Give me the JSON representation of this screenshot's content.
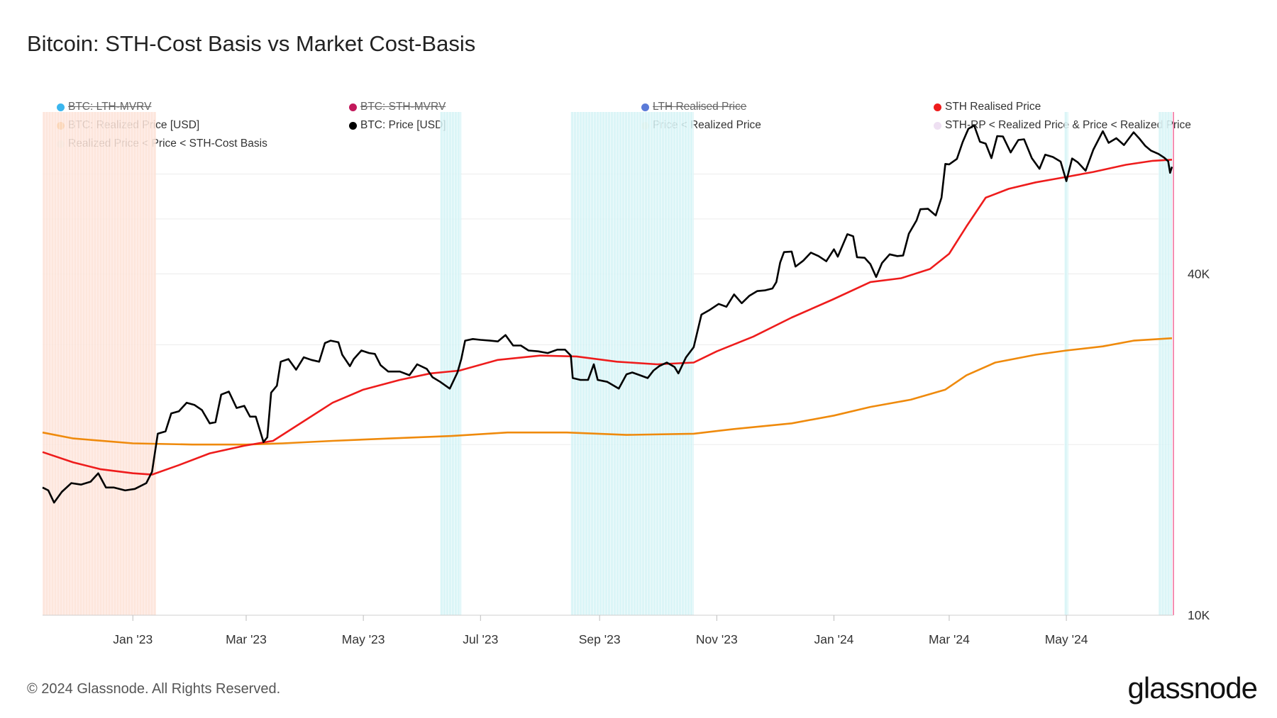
{
  "title": "Bitcoin: STH-Cost Basis vs Market Cost-Basis",
  "footer": "© 2024 Glassnode. All Rights Reserved.",
  "logo": "glassnode",
  "legend": [
    {
      "label": "BTC: LTH-MVRV",
      "color": "#3bb6ee",
      "hidden": true
    },
    {
      "label": "BTC: STH-MVRV",
      "color": "#c2185b",
      "hidden": true
    },
    {
      "label": "LTH Realised Price",
      "color": "#5b7bd8",
      "hidden": true
    },
    {
      "label": "STH Realised Price",
      "color": "#ee1c1c",
      "hidden": false
    },
    {
      "label": "BTC: Realized Price [USD]",
      "color": "#ef8a0c",
      "hidden": false
    },
    {
      "label": "BTC: Price [USD]",
      "color": "#000000",
      "hidden": false
    },
    {
      "label": "Price < Realized Price",
      "color": "#fde7c7",
      "hidden": false
    },
    {
      "label": "STH-RP < Realized Price & Price < Realized Price",
      "color": "#eee0f2",
      "hidden": false
    },
    {
      "label": "Realized Price < Price < STH-Cost Basis",
      "color": "#dff6f8",
      "hidden": false
    }
  ],
  "chart_data": {
    "type": "line",
    "yscale": "log",
    "ylim": [
      10000,
      75000
    ],
    "xlim": [
      "2022-11-15",
      "2024-06-25"
    ],
    "y_ticks": [
      {
        "value": 10000,
        "label": "10K"
      },
      {
        "value": 40000,
        "label": "40K"
      }
    ],
    "x_ticks": [
      {
        "date": "2023-01-01",
        "label": "Jan '23"
      },
      {
        "date": "2023-03-01",
        "label": "Mar '23"
      },
      {
        "date": "2023-05-01",
        "label": "May '23"
      },
      {
        "date": "2023-07-01",
        "label": "Jul '23"
      },
      {
        "date": "2023-09-01",
        "label": "Sep '23"
      },
      {
        "date": "2023-11-01",
        "label": "Nov '23"
      },
      {
        "date": "2024-01-01",
        "label": "Jan '24"
      },
      {
        "date": "2024-03-01",
        "label": "Mar '24"
      },
      {
        "date": "2024-05-01",
        "label": "May '24"
      }
    ],
    "grid": true,
    "legend_position": "top",
    "series": [
      {
        "name": "BTC: Price [USD]",
        "color": "#000000",
        "points": [
          [
            "2022-11-15",
            16800
          ],
          [
            "2022-11-18",
            16600
          ],
          [
            "2022-11-21",
            15800
          ],
          [
            "2022-11-25",
            16500
          ],
          [
            "2022-11-30",
            17100
          ],
          [
            "2022-12-05",
            17000
          ],
          [
            "2022-12-10",
            17200
          ],
          [
            "2022-12-14",
            17800
          ],
          [
            "2022-12-18",
            16800
          ],
          [
            "2022-12-22",
            16800
          ],
          [
            "2022-12-28",
            16600
          ],
          [
            "2023-01-02",
            16700
          ],
          [
            "2023-01-08",
            17100
          ],
          [
            "2023-01-11",
            17900
          ],
          [
            "2023-01-14",
            20900
          ],
          [
            "2023-01-18",
            21100
          ],
          [
            "2023-01-21",
            22700
          ],
          [
            "2023-01-25",
            22900
          ],
          [
            "2023-01-29",
            23700
          ],
          [
            "2023-02-02",
            23500
          ],
          [
            "2023-02-06",
            23000
          ],
          [
            "2023-02-10",
            21800
          ],
          [
            "2023-02-13",
            21900
          ],
          [
            "2023-02-16",
            24500
          ],
          [
            "2023-02-20",
            24800
          ],
          [
            "2023-02-24",
            23200
          ],
          [
            "2023-02-28",
            23400
          ],
          [
            "2023-03-03",
            22400
          ],
          [
            "2023-03-06",
            22400
          ],
          [
            "2023-03-10",
            20200
          ],
          [
            "2023-03-12",
            20600
          ],
          [
            "2023-03-14",
            24700
          ],
          [
            "2023-03-17",
            25400
          ],
          [
            "2023-03-19",
            28000
          ],
          [
            "2023-03-23",
            28300
          ],
          [
            "2023-03-27",
            27100
          ],
          [
            "2023-03-31",
            28500
          ],
          [
            "2023-04-04",
            28200
          ],
          [
            "2023-04-08",
            28000
          ],
          [
            "2023-04-11",
            30200
          ],
          [
            "2023-04-14",
            30500
          ],
          [
            "2023-04-18",
            30300
          ],
          [
            "2023-04-20",
            28800
          ],
          [
            "2023-04-24",
            27500
          ],
          [
            "2023-04-26",
            28300
          ],
          [
            "2023-04-30",
            29300
          ],
          [
            "2023-05-04",
            29000
          ],
          [
            "2023-05-07",
            28900
          ],
          [
            "2023-05-10",
            27600
          ],
          [
            "2023-05-14",
            26900
          ],
          [
            "2023-05-20",
            26900
          ],
          [
            "2023-05-25",
            26500
          ],
          [
            "2023-05-29",
            27700
          ],
          [
            "2023-06-03",
            27200
          ],
          [
            "2023-06-06",
            26300
          ],
          [
            "2023-06-10",
            25800
          ],
          [
            "2023-06-15",
            25100
          ],
          [
            "2023-06-19",
            26800
          ],
          [
            "2023-06-21",
            28300
          ],
          [
            "2023-06-23",
            30500
          ],
          [
            "2023-06-27",
            30700
          ],
          [
            "2023-07-01",
            30600
          ],
          [
            "2023-07-06",
            30500
          ],
          [
            "2023-07-10",
            30400
          ],
          [
            "2023-07-14",
            31200
          ],
          [
            "2023-07-18",
            29900
          ],
          [
            "2023-07-22",
            29900
          ],
          [
            "2023-07-26",
            29300
          ],
          [
            "2023-07-31",
            29200
          ],
          [
            "2023-08-05",
            29000
          ],
          [
            "2023-08-10",
            29400
          ],
          [
            "2023-08-14",
            29400
          ],
          [
            "2023-08-17",
            28700
          ],
          [
            "2023-08-18",
            26200
          ],
          [
            "2023-08-22",
            26000
          ],
          [
            "2023-08-26",
            26000
          ],
          [
            "2023-08-29",
            27700
          ],
          [
            "2023-08-31",
            26000
          ],
          [
            "2023-09-05",
            25800
          ],
          [
            "2023-09-11",
            25100
          ],
          [
            "2023-09-15",
            26600
          ],
          [
            "2023-09-18",
            26800
          ],
          [
            "2023-09-22",
            26500
          ],
          [
            "2023-09-26",
            26200
          ],
          [
            "2023-09-29",
            27000
          ],
          [
            "2023-10-02",
            27500
          ],
          [
            "2023-10-06",
            27900
          ],
          [
            "2023-10-10",
            27400
          ],
          [
            "2023-10-12",
            26700
          ],
          [
            "2023-10-16",
            28500
          ],
          [
            "2023-10-20",
            29700
          ],
          [
            "2023-10-24",
            33900
          ],
          [
            "2023-10-28",
            34500
          ],
          [
            "2023-11-02",
            35400
          ],
          [
            "2023-11-06",
            35000
          ],
          [
            "2023-11-10",
            36800
          ],
          [
            "2023-11-14",
            35500
          ],
          [
            "2023-11-18",
            36600
          ],
          [
            "2023-11-22",
            37300
          ],
          [
            "2023-11-26",
            37400
          ],
          [
            "2023-11-30",
            37700
          ],
          [
            "2023-12-02",
            38700
          ],
          [
            "2023-12-04",
            41900
          ],
          [
            "2023-12-06",
            43700
          ],
          [
            "2023-12-10",
            43800
          ],
          [
            "2023-12-12",
            41200
          ],
          [
            "2023-12-16",
            42200
          ],
          [
            "2023-12-20",
            43600
          ],
          [
            "2023-12-24",
            43000
          ],
          [
            "2023-12-28",
            42100
          ],
          [
            "2024-01-01",
            44200
          ],
          [
            "2024-01-03",
            42900
          ],
          [
            "2024-01-08",
            47000
          ],
          [
            "2024-01-11",
            46600
          ],
          [
            "2024-01-13",
            42800
          ],
          [
            "2024-01-17",
            42700
          ],
          [
            "2024-01-20",
            41600
          ],
          [
            "2024-01-23",
            39500
          ],
          [
            "2024-01-26",
            41800
          ],
          [
            "2024-01-30",
            43300
          ],
          [
            "2024-02-03",
            43000
          ],
          [
            "2024-02-06",
            43100
          ],
          [
            "2024-02-09",
            47100
          ],
          [
            "2024-02-13",
            49700
          ],
          [
            "2024-02-15",
            52000
          ],
          [
            "2024-02-19",
            52100
          ],
          [
            "2024-02-23",
            50700
          ],
          [
            "2024-02-26",
            54500
          ],
          [
            "2024-02-28",
            62500
          ],
          [
            "2024-03-01",
            62400
          ],
          [
            "2024-03-05",
            63800
          ],
          [
            "2024-03-08",
            68300
          ],
          [
            "2024-03-11",
            72100
          ],
          [
            "2024-03-14",
            73100
          ],
          [
            "2024-03-17",
            68400
          ],
          [
            "2024-03-20",
            67900
          ],
          [
            "2024-03-23",
            64000
          ],
          [
            "2024-03-26",
            70000
          ],
          [
            "2024-03-29",
            69900
          ],
          [
            "2024-04-02",
            65500
          ],
          [
            "2024-04-06",
            68900
          ],
          [
            "2024-04-09",
            69100
          ],
          [
            "2024-04-13",
            64000
          ],
          [
            "2024-04-17",
            61300
          ],
          [
            "2024-04-20",
            64900
          ],
          [
            "2024-04-24",
            64300
          ],
          [
            "2024-04-28",
            63100
          ],
          [
            "2024-05-01",
            58300
          ],
          [
            "2024-05-04",
            63900
          ],
          [
            "2024-05-07",
            62900
          ],
          [
            "2024-05-11",
            60800
          ],
          [
            "2024-05-15",
            66200
          ],
          [
            "2024-05-20",
            71400
          ],
          [
            "2024-05-23",
            68100
          ],
          [
            "2024-05-27",
            69400
          ],
          [
            "2024-05-31",
            67500
          ],
          [
            "2024-06-05",
            71100
          ],
          [
            "2024-06-08",
            69300
          ],
          [
            "2024-06-11",
            67300
          ],
          [
            "2024-06-14",
            66000
          ],
          [
            "2024-06-18",
            65100
          ],
          [
            "2024-06-21",
            64100
          ],
          [
            "2024-06-23",
            63200
          ],
          [
            "2024-06-24",
            60300
          ],
          [
            "2024-06-25",
            61800
          ]
        ]
      },
      {
        "name": "STH Realised Price",
        "color": "#ee1c1c",
        "points": [
          [
            "2022-11-15",
            19400
          ],
          [
            "2022-12-01",
            18600
          ],
          [
            "2022-12-15",
            18100
          ],
          [
            "2023-01-01",
            17800
          ],
          [
            "2023-01-11",
            17700
          ],
          [
            "2023-01-25",
            18400
          ],
          [
            "2023-02-10",
            19300
          ],
          [
            "2023-02-28",
            19900
          ],
          [
            "2023-03-15",
            20300
          ],
          [
            "2023-04-01",
            22100
          ],
          [
            "2023-04-15",
            23700
          ],
          [
            "2023-05-01",
            25000
          ],
          [
            "2023-05-20",
            26000
          ],
          [
            "2023-06-05",
            26700
          ],
          [
            "2023-06-20",
            27000
          ],
          [
            "2023-07-10",
            28200
          ],
          [
            "2023-08-01",
            28700
          ],
          [
            "2023-08-20",
            28600
          ],
          [
            "2023-09-10",
            28000
          ],
          [
            "2023-10-01",
            27700
          ],
          [
            "2023-10-20",
            27900
          ],
          [
            "2023-11-01",
            29200
          ],
          [
            "2023-11-20",
            31000
          ],
          [
            "2023-12-10",
            33500
          ],
          [
            "2023-12-31",
            36000
          ],
          [
            "2024-01-20",
            38700
          ],
          [
            "2024-02-05",
            39300
          ],
          [
            "2024-02-20",
            40800
          ],
          [
            "2024-03-01",
            43400
          ],
          [
            "2024-03-10",
            48500
          ],
          [
            "2024-03-20",
            54500
          ],
          [
            "2024-04-01",
            56500
          ],
          [
            "2024-04-15",
            58000
          ],
          [
            "2024-05-01",
            59300
          ],
          [
            "2024-05-15",
            60500
          ],
          [
            "2024-06-01",
            62300
          ],
          [
            "2024-06-15",
            63300
          ],
          [
            "2024-06-25",
            63600
          ]
        ]
      },
      {
        "name": "BTC: Realized Price [USD]",
        "color": "#ef8a0c",
        "points": [
          [
            "2022-11-15",
            21000
          ],
          [
            "2022-12-01",
            20500
          ],
          [
            "2023-01-01",
            20100
          ],
          [
            "2023-02-01",
            20000
          ],
          [
            "2023-03-01",
            20000
          ],
          [
            "2023-03-20",
            20100
          ],
          [
            "2023-04-15",
            20300
          ],
          [
            "2023-05-15",
            20500
          ],
          [
            "2023-06-15",
            20700
          ],
          [
            "2023-07-15",
            21000
          ],
          [
            "2023-08-15",
            21000
          ],
          [
            "2023-09-15",
            20800
          ],
          [
            "2023-10-20",
            20900
          ],
          [
            "2023-11-10",
            21300
          ],
          [
            "2023-12-10",
            21800
          ],
          [
            "2024-01-01",
            22500
          ],
          [
            "2024-01-20",
            23300
          ],
          [
            "2024-02-10",
            24000
          ],
          [
            "2024-02-28",
            25000
          ],
          [
            "2024-03-10",
            26500
          ],
          [
            "2024-03-25",
            27900
          ],
          [
            "2024-04-15",
            28800
          ],
          [
            "2024-05-01",
            29300
          ],
          [
            "2024-05-20",
            29800
          ],
          [
            "2024-06-05",
            30500
          ],
          [
            "2024-06-25",
            30800
          ]
        ]
      }
    ],
    "bands": [
      {
        "name": "Price < Realized Price",
        "color": "#fde2d6",
        "ranges": [
          [
            "2022-11-15",
            "2023-01-13"
          ]
        ]
      },
      {
        "name": "Realized Price < Price < STH-Cost Basis",
        "color": "#d5f3f6",
        "ranges": [
          [
            "2023-06-10",
            "2023-06-21"
          ],
          [
            "2023-08-17",
            "2023-10-20"
          ],
          [
            "2024-04-30",
            "2024-05-02"
          ],
          [
            "2024-06-18",
            "2024-06-25"
          ]
        ]
      }
    ]
  }
}
